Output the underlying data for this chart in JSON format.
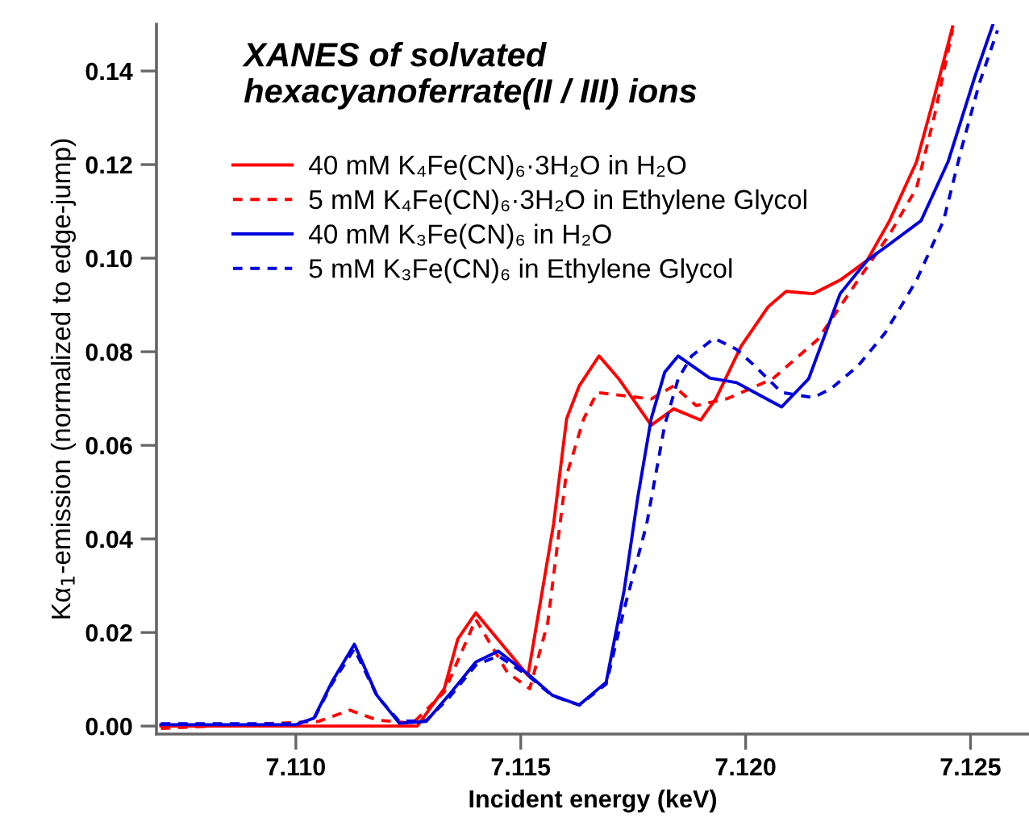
{
  "chart_data": {
    "type": "line",
    "title": "XANES of solvated\nhexacyanoferrate(II / III) ions",
    "xlabel": "Incident energy (keV)",
    "ylabel": "Kα$_{1}$-emission (normalized to edge-jump)",
    "xlim": [
      7.1069,
      7.1263
    ],
    "ylim": [
      -0.0017,
      0.15
    ],
    "xticks": [
      {
        "value": 7.11,
        "label": "7.110"
      },
      {
        "value": 7.115,
        "label": "7.115"
      },
      {
        "value": 7.12,
        "label": "7.120"
      },
      {
        "value": 7.125,
        "label": "7.125"
      }
    ],
    "yticks": [
      {
        "value": 0,
        "label": "0.00"
      },
      {
        "value": 0.02,
        "label": "0.02"
      },
      {
        "value": 0.04,
        "label": "0.04"
      },
      {
        "value": 0.06,
        "label": "0.06"
      },
      {
        "value": 0.08,
        "label": "0.08"
      },
      {
        "value": 0.1,
        "label": "0.10"
      },
      {
        "value": 0.12,
        "label": "0.12"
      },
      {
        "value": 0.14,
        "label": "0.14"
      }
    ],
    "grid": false,
    "legend": "top left",
    "marker": "none",
    "series": [
      {
        "name": "40 mM K₄Fe(CN)₆·3H₂O in H₂O",
        "color": "#ff0000",
        "line_style": "solid",
        "x": [
          7.107,
          7.1125,
          7.1127,
          7.1133,
          7.1136,
          7.114,
          7.11516,
          7.11573,
          7.11602,
          7.1163,
          7.11674,
          7.11718,
          7.1179,
          7.1184,
          7.119,
          7.11934,
          7.1199,
          7.1205,
          7.1209,
          7.1215,
          7.1221,
          7.1227,
          7.1232,
          7.1238,
          7.1242,
          7.1246
        ],
        "values": [
          0.0,
          0.0,
          0.0,
          0.008,
          0.0186,
          0.0242,
          0.0108,
          0.0432,
          0.0657,
          0.0727,
          0.0791,
          0.0742,
          0.0643,
          0.0678,
          0.0654,
          0.07,
          0.0812,
          0.0896,
          0.0929,
          0.0924,
          0.0953,
          0.0995,
          0.108,
          0.1206,
          0.1347,
          0.1494
        ]
      },
      {
        "name": "5 mM K₄Fe(CN)₆·3H₂O in Ethylene Glycol",
        "color": "#ff0000",
        "line_style": "dashed",
        "x": [
          7.107,
          7.1105,
          7.1112,
          7.1118,
          7.1126,
          7.1133,
          7.114,
          7.1147,
          7.1152,
          7.1156,
          7.116,
          7.1164,
          7.1167,
          7.1173,
          7.1179,
          7.1184,
          7.1189,
          7.1196,
          7.1206,
          7.1216,
          7.1224,
          7.1232,
          7.1238,
          7.1242,
          7.1246
        ],
        "values": [
          -0.0005,
          0.001,
          0.0034,
          0.0013,
          0.0006,
          0.0073,
          0.0228,
          0.0115,
          0.008,
          0.0221,
          0.053,
          0.0657,
          0.0713,
          0.0706,
          0.0699,
          0.0727,
          0.0685,
          0.07,
          0.0742,
          0.0826,
          0.0939,
          0.1051,
          0.115,
          0.1305,
          0.1488
        ]
      },
      {
        "name": "40 mM K₃Fe(CN)₆ in H₂O",
        "color": "#0000dd",
        "line_style": "solid",
        "x": [
          7.107,
          7.11,
          7.1104,
          7.1108,
          7.1113,
          7.1118,
          7.1123,
          7.1129,
          7.1134,
          7.114,
          7.1145,
          7.1152,
          7.1157,
          7.1163,
          7.1169,
          7.1173,
          7.1176,
          7.1179,
          7.1182,
          7.1185,
          7.1192,
          7.1198,
          7.1202,
          7.1208,
          7.1214,
          7.1221,
          7.1227,
          7.1231,
          7.1239,
          7.1245,
          7.1251,
          7.1255
        ],
        "values": [
          0.0003,
          0.0003,
          0.0017,
          0.0094,
          0.0175,
          0.0066,
          0.0006,
          0.001,
          0.0066,
          0.0137,
          0.016,
          0.0108,
          0.0066,
          0.0045,
          0.0094,
          0.0291,
          0.0488,
          0.0657,
          0.0756,
          0.0791,
          0.0744,
          0.0734,
          0.0713,
          0.0682,
          0.0742,
          0.0924,
          0.0995,
          0.1023,
          0.108,
          0.1206,
          0.1389,
          0.15
        ]
      },
      {
        "name": "5 mM K₃Fe(CN)₆ in Ethylene Glycol",
        "color": "#0000dd",
        "line_style": "dashed",
        "x": [
          7.107,
          7.11,
          7.1104,
          7.1108,
          7.1113,
          7.1118,
          7.1123,
          7.1129,
          7.1134,
          7.114,
          7.1145,
          7.1152,
          7.1157,
          7.1163,
          7.1169,
          7.1173,
          7.1178,
          7.1182,
          7.1185,
          7.1188,
          7.1193,
          7.1198,
          7.1202,
          7.1208,
          7.1215,
          7.1219,
          7.1225,
          7.1231,
          7.1238,
          7.1244,
          7.1248,
          7.1252,
          7.1256
        ],
        "values": [
          0.0005,
          0.0005,
          0.0015,
          0.009,
          0.0165,
          0.0065,
          0.001,
          0.0012,
          0.006,
          0.013,
          0.015,
          0.0105,
          0.0065,
          0.0045,
          0.009,
          0.025,
          0.0432,
          0.0643,
          0.0742,
          0.0791,
          0.0829,
          0.0805,
          0.077,
          0.0713,
          0.0702,
          0.0721,
          0.077,
          0.084,
          0.0953,
          0.108,
          0.1234,
          0.1375,
          0.1487
        ]
      }
    ]
  }
}
